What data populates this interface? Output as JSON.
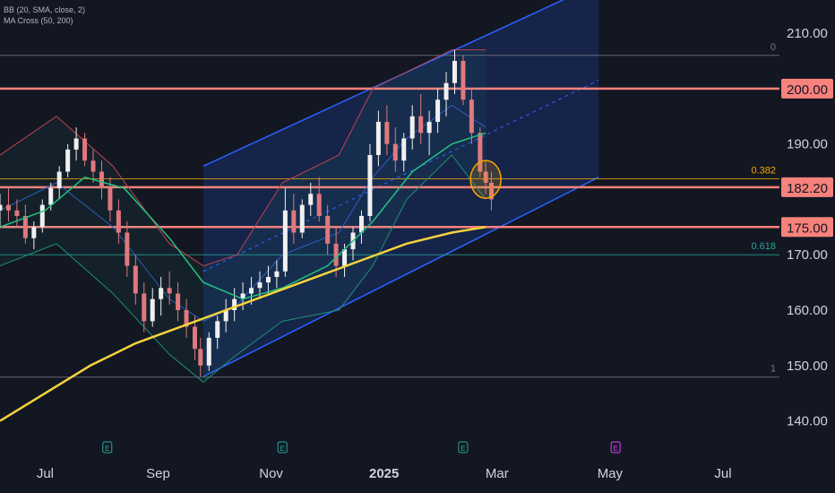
{
  "indicators": [
    "BB (20, SMA, close, 2)",
    "MA Cross (50, 200)"
  ],
  "chart_data": {
    "type": "candlestick",
    "ylim": [
      137.5,
      216
    ],
    "y_ticks": [
      "210.00",
      "190.00",
      "170.00",
      "160.00",
      "150.00",
      "140.00"
    ],
    "x_ticks": [
      {
        "label": "Jul",
        "x": 0.8
      },
      {
        "label": "Sep",
        "x": 2.8
      },
      {
        "label": "Nov",
        "x": 4.8
      },
      {
        "label": "2025",
        "x": 6.8
      },
      {
        "label": "Mar",
        "x": 8.8
      },
      {
        "label": "May",
        "x": 10.8
      },
      {
        "label": "Jul",
        "x": 12.8
      }
    ],
    "levels": [
      {
        "label": "200.00",
        "value": 200.0
      },
      {
        "label": "182.20",
        "value": 182.2
      },
      {
        "label": "175.00",
        "value": 175.0
      }
    ],
    "fibonacci": [
      {
        "label": "0",
        "value": 206.0
      },
      {
        "label": "0.382",
        "value": 183.7
      },
      {
        "label": "0.618",
        "value": 170.0
      },
      {
        "label": "1",
        "value": 147.9
      }
    ],
    "channel": {
      "start": [
        3.6,
        186.0
      ],
      "end": [
        10.6,
        219.0
      ],
      "lower_start": [
        3.6,
        148.0
      ],
      "lower_end": [
        10.6,
        184.0
      ]
    },
    "earnings_x": [
      1.9,
      5.0,
      8.2,
      10.9
    ],
    "earnings_labels": [
      "E",
      "E",
      "E",
      "E"
    ],
    "highlight": {
      "x": 8.6,
      "y": 183.6
    },
    "candles": [
      [
        0.0,
        178,
        181,
        175,
        179
      ],
      [
        0.15,
        179,
        182,
        176,
        178
      ],
      [
        0.3,
        178,
        180,
        175,
        177
      ],
      [
        0.45,
        177,
        179,
        172,
        173
      ],
      [
        0.6,
        173,
        176,
        171,
        175
      ],
      [
        0.75,
        175,
        180,
        174,
        179
      ],
      [
        0.9,
        179,
        183,
        178,
        182
      ],
      [
        1.05,
        182,
        186,
        180,
        185
      ],
      [
        1.2,
        185,
        190,
        184,
        189
      ],
      [
        1.35,
        189,
        193,
        187,
        191
      ],
      [
        1.5,
        191,
        192,
        186,
        187
      ],
      [
        1.65,
        187,
        189,
        183,
        185
      ],
      [
        1.8,
        185,
        187,
        180,
        182
      ],
      [
        1.95,
        182,
        184,
        176,
        178
      ],
      [
        2.1,
        178,
        180,
        172,
        174
      ],
      [
        2.25,
        174,
        176,
        166,
        168
      ],
      [
        2.4,
        168,
        170,
        161,
        163
      ],
      [
        2.55,
        163,
        165,
        156,
        158
      ],
      [
        2.7,
        158,
        164,
        157,
        162
      ],
      [
        2.85,
        162,
        166,
        159,
        164
      ],
      [
        3.0,
        164,
        167,
        161,
        163
      ],
      [
        3.15,
        163,
        165,
        158,
        160
      ],
      [
        3.3,
        160,
        162,
        155,
        157
      ],
      [
        3.45,
        157,
        159,
        151,
        153
      ],
      [
        3.55,
        153,
        155,
        148,
        150
      ],
      [
        3.7,
        150,
        156,
        149,
        155
      ],
      [
        3.85,
        155,
        159,
        153,
        158
      ],
      [
        4.0,
        158,
        162,
        156,
        160
      ],
      [
        4.15,
        160,
        164,
        158,
        162
      ],
      [
        4.3,
        162,
        165,
        160,
        163
      ],
      [
        4.45,
        163,
        166,
        161,
        164
      ],
      [
        4.6,
        164,
        167,
        162,
        165
      ],
      [
        4.75,
        165,
        168,
        163,
        166
      ],
      [
        4.9,
        166,
        169,
        164,
        167
      ],
      [
        5.05,
        167,
        182,
        166,
        178
      ],
      [
        5.2,
        178,
        181,
        172,
        174
      ],
      [
        5.35,
        174,
        180,
        173,
        179
      ],
      [
        5.5,
        179,
        183,
        177,
        181
      ],
      [
        5.65,
        181,
        184,
        176,
        177
      ],
      [
        5.8,
        177,
        179,
        170,
        172
      ],
      [
        5.95,
        172,
        175,
        166,
        168
      ],
      [
        6.1,
        168,
        172,
        166,
        171
      ],
      [
        6.25,
        171,
        175,
        169,
        174
      ],
      [
        6.4,
        174,
        178,
        172,
        177
      ],
      [
        6.55,
        177,
        190,
        176,
        188
      ],
      [
        6.7,
        188,
        196,
        186,
        194
      ],
      [
        6.85,
        194,
        197,
        188,
        190
      ],
      [
        7.0,
        190,
        193,
        185,
        187
      ],
      [
        7.15,
        187,
        192,
        185,
        191
      ],
      [
        7.3,
        191,
        197,
        189,
        195
      ],
      [
        7.45,
        195,
        199,
        190,
        192
      ],
      [
        7.6,
        192,
        196,
        188,
        194
      ],
      [
        7.75,
        194,
        200,
        192,
        198
      ],
      [
        7.9,
        198,
        203,
        195,
        201
      ],
      [
        8.05,
        201,
        207,
        199,
        205
      ],
      [
        8.2,
        205,
        206,
        197,
        198
      ],
      [
        8.35,
        198,
        200,
        190,
        192
      ],
      [
        8.5,
        192,
        193,
        184,
        185
      ],
      [
        8.6,
        185,
        187,
        181,
        183
      ],
      [
        8.7,
        183,
        185,
        178,
        180
      ]
    ],
    "bb_upper": [
      [
        0,
        188
      ],
      [
        1,
        195
      ],
      [
        2,
        186
      ],
      [
        3,
        172
      ],
      [
        3.6,
        168
      ],
      [
        4.2,
        170
      ],
      [
        5,
        183
      ],
      [
        6,
        188
      ],
      [
        6.6,
        200
      ],
      [
        7.2,
        203
      ],
      [
        8.0,
        207
      ],
      [
        8.6,
        207
      ]
    ],
    "bb_lower": [
      [
        0,
        168
      ],
      [
        1,
        172
      ],
      [
        2,
        163
      ],
      [
        3,
        152
      ],
      [
        3.6,
        147
      ],
      [
        4.2,
        152
      ],
      [
        5,
        158
      ],
      [
        6,
        160
      ],
      [
        6.6,
        168
      ],
      [
        7.2,
        180
      ],
      [
        8.0,
        188
      ],
      [
        8.6,
        180
      ]
    ],
    "bb_mid": [
      [
        0,
        178
      ],
      [
        1,
        183
      ],
      [
        2,
        175
      ],
      [
        3,
        162
      ],
      [
        3.6,
        158
      ],
      [
        4.2,
        161
      ],
      [
        5,
        170
      ],
      [
        6,
        174
      ],
      [
        6.6,
        184
      ],
      [
        7.2,
        191
      ],
      [
        8.0,
        197
      ],
      [
        8.6,
        193
      ]
    ],
    "ma50": [
      [
        0,
        175
      ],
      [
        0.8,
        178
      ],
      [
        1.5,
        184
      ],
      [
        2.2,
        182
      ],
      [
        3.0,
        173
      ],
      [
        3.6,
        165
      ],
      [
        4.3,
        162
      ],
      [
        5.0,
        164
      ],
      [
        5.8,
        168
      ],
      [
        6.6,
        176
      ],
      [
        7.3,
        185
      ],
      [
        8.0,
        190
      ],
      [
        8.6,
        192
      ]
    ],
    "ma200": [
      [
        0,
        140
      ],
      [
        0.8,
        145
      ],
      [
        1.6,
        150
      ],
      [
        2.4,
        154
      ],
      [
        3.2,
        157
      ],
      [
        4.0,
        160
      ],
      [
        4.8,
        163
      ],
      [
        5.6,
        166
      ],
      [
        6.4,
        169
      ],
      [
        7.2,
        172
      ],
      [
        8.0,
        174
      ],
      [
        8.6,
        175
      ]
    ]
  }
}
